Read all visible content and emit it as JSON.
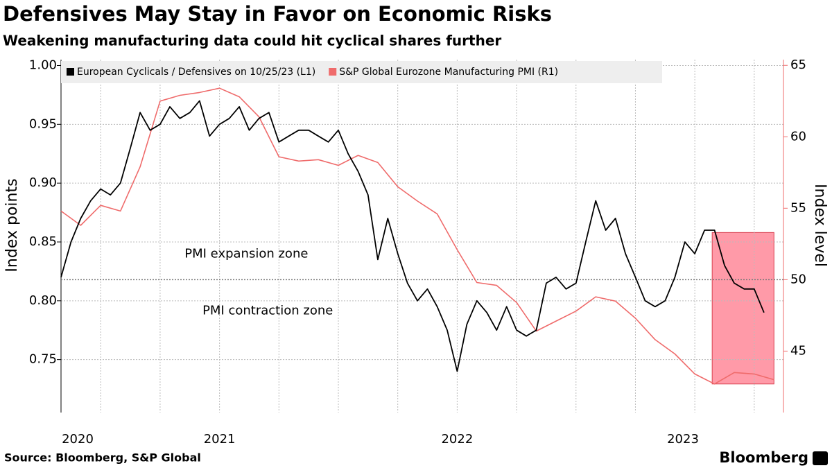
{
  "chart_data": {
    "type": "line",
    "title": "Defensives May Stay in Favor on Economic Risks",
    "subtitle": "Weakening manufacturing data could hit cyclical shares further",
    "ylabel": "Index points",
    "y2label": "Index level",
    "source": "Source: Bloomberg, S&P Global",
    "brand": "Bloomberg",
    "xlim": [
      2020.75,
      2023.79
    ],
    "xticks": [
      {
        "value": 2020.417,
        "label": "2020"
      },
      {
        "value": 2021.417,
        "label": "2021"
      },
      {
        "value": 2022.417,
        "label": "2022"
      },
      {
        "value": 2023.417,
        "label": "2023"
      }
    ],
    "xgrid": [
      2020.917,
      2021.167,
      2021.417,
      2021.667,
      2021.917,
      2022.167,
      2022.417,
      2022.667,
      2022.917,
      2023.167,
      2023.417,
      2023.667
    ],
    "ylim": [
      0.705,
      1.005
    ],
    "yticks": [
      0.75,
      {
        "value": 0.8,
        "label": "0.80"
      },
      0.85,
      {
        "value": 0.9,
        "label": "0.90"
      },
      0.95,
      {
        "value": 1.0,
        "label": "1.00"
      }
    ],
    "y2lim": [
      40.7,
      65.4
    ],
    "y2ticks": [
      45,
      50,
      55,
      60,
      65
    ],
    "y2_reference": 50,
    "grid": true,
    "series": [
      {
        "name": "European Cyclicals / Defensives on 10/25/23 (L1)",
        "color": "#000000",
        "axis": "y",
        "x": [
          2020.75,
          2020.792,
          2020.833,
          2020.875,
          2020.917,
          2020.958,
          2021.0,
          2021.042,
          2021.083,
          2021.125,
          2021.167,
          2021.208,
          2021.25,
          2021.292,
          2021.333,
          2021.375,
          2021.417,
          2021.458,
          2021.5,
          2021.542,
          2021.583,
          2021.625,
          2021.667,
          2021.708,
          2021.75,
          2021.792,
          2021.833,
          2021.875,
          2021.917,
          2021.958,
          2022.0,
          2022.042,
          2022.083,
          2022.125,
          2022.167,
          2022.208,
          2022.25,
          2022.292,
          2022.333,
          2022.375,
          2022.417,
          2022.458,
          2022.5,
          2022.542,
          2022.583,
          2022.625,
          2022.667,
          2022.708,
          2022.75,
          2022.792,
          2022.833,
          2022.875,
          2022.917,
          2022.958,
          2023.0,
          2023.042,
          2023.083,
          2023.125,
          2023.167,
          2023.208,
          2023.25,
          2023.292,
          2023.333,
          2023.375,
          2023.417,
          2023.458,
          2023.5,
          2023.542,
          2023.583,
          2023.625,
          2023.667,
          2023.708
        ],
        "values": [
          0.82,
          0.85,
          0.87,
          0.885,
          0.895,
          0.89,
          0.9,
          0.93,
          0.96,
          0.945,
          0.95,
          0.965,
          0.955,
          0.96,
          0.97,
          0.94,
          0.95,
          0.955,
          0.965,
          0.945,
          0.955,
          0.96,
          0.935,
          0.94,
          0.945,
          0.945,
          0.94,
          0.935,
          0.945,
          0.925,
          0.91,
          0.89,
          0.835,
          0.87,
          0.84,
          0.815,
          0.8,
          0.81,
          0.795,
          0.775,
          0.74,
          0.78,
          0.8,
          0.79,
          0.775,
          0.795,
          0.775,
          0.77,
          0.775,
          0.815,
          0.82,
          0.81,
          0.815,
          0.85,
          0.885,
          0.86,
          0.87,
          0.84,
          0.82,
          0.8,
          0.795,
          0.8,
          0.82,
          0.85,
          0.84,
          0.86,
          0.86,
          0.83,
          0.815,
          0.81,
          0.81,
          0.79
        ]
      },
      {
        "name": "S&P Global Eurozone Manufacturing PMI (R1)",
        "color": "#ef6b6b",
        "axis": "y2",
        "x": [
          2020.75,
          2020.833,
          2020.917,
          2021.0,
          2021.083,
          2021.167,
          2021.25,
          2021.333,
          2021.417,
          2021.5,
          2021.583,
          2021.667,
          2021.75,
          2021.833,
          2021.917,
          2022.0,
          2022.083,
          2022.167,
          2022.25,
          2022.333,
          2022.417,
          2022.5,
          2022.583,
          2022.667,
          2022.75,
          2022.833,
          2022.917,
          2023.0,
          2023.083,
          2023.167,
          2023.25,
          2023.333,
          2023.417,
          2023.5,
          2023.583,
          2023.667,
          2023.75
        ],
        "values": [
          54.8,
          53.8,
          55.2,
          54.8,
          57.9,
          62.5,
          62.9,
          63.1,
          63.4,
          62.8,
          61.4,
          58.6,
          58.3,
          58.4,
          58.0,
          58.7,
          58.2,
          56.5,
          55.5,
          54.6,
          52.1,
          49.8,
          49.6,
          48.4,
          46.4,
          47.1,
          47.8,
          48.8,
          48.5,
          47.3,
          45.8,
          44.8,
          43.4,
          42.7,
          43.5,
          43.4,
          43.0
        ]
      }
    ],
    "annotations": [
      {
        "text": "PMI expansion zone",
        "color": "#33dd33",
        "x": 2021.53,
        "y2": 51.8
      },
      {
        "text": "PMI contraction zone",
        "color": "#e03030",
        "x": 2021.62,
        "y2": 47.8
      }
    ],
    "highlight": {
      "xlim": [
        2023.49,
        2023.75
      ],
      "y2lim": [
        42.7,
        53.3
      ],
      "color": "#ff9aa8"
    }
  }
}
